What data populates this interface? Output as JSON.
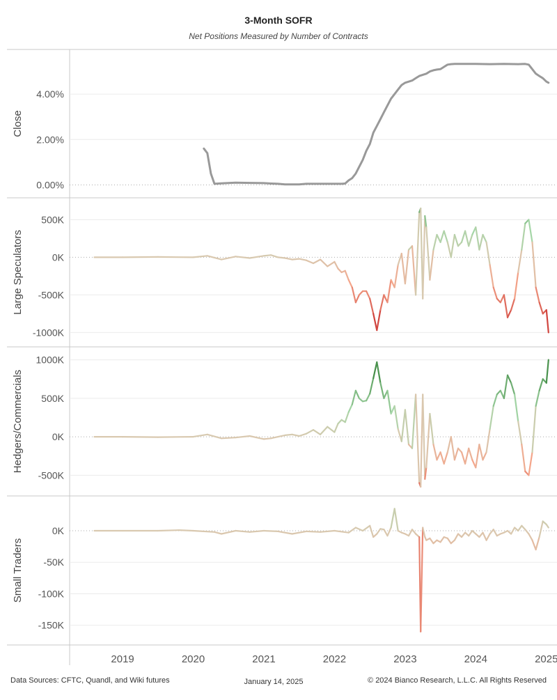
{
  "title": "3-Month SOFR",
  "subtitle": "Net Positions Measured by Number of Contracts",
  "footer": {
    "sources": "Data Sources: CFTC, Quandl, and Wiki futures",
    "date": "January 14, 2025",
    "copyright": "© 2024 Bianco Research, L.L.C. All Rights Reserved"
  },
  "colors": {
    "close_line": "#999999",
    "positive_dark": "#2e7d32",
    "positive_light": "#a5d6a7",
    "neutral": "#d9c9b0",
    "negative_light": "#f4a58a",
    "negative_dark": "#c62828",
    "grid": "#ebebeb",
    "border": "#c8c8c8"
  },
  "chart_data": [
    {
      "type": "line",
      "ylabel": "Close",
      "ylim": [
        -0.2,
        5.6
      ],
      "yticks": [
        0,
        2,
        4
      ],
      "yticklabels": [
        "0.00%",
        "2.00%",
        "4.00%"
      ],
      "color_mode": "solid",
      "x": [
        2020.15,
        2020.2,
        2020.25,
        2020.3,
        2020.4,
        2020.6,
        2020.8,
        2021.0,
        2021.1,
        2021.2,
        2021.3,
        2021.4,
        2021.5,
        2021.6,
        2021.8,
        2022.0,
        2022.1,
        2022.15,
        2022.2,
        2022.25,
        2022.3,
        2022.35,
        2022.4,
        2022.45,
        2022.5,
        2022.55,
        2022.6,
        2022.65,
        2022.7,
        2022.75,
        2022.8,
        2022.85,
        2022.9,
        2022.95,
        2023.0,
        2023.05,
        2023.1,
        2023.15,
        2023.2,
        2023.25,
        2023.3,
        2023.35,
        2023.4,
        2023.45,
        2023.5,
        2023.55,
        2023.6,
        2023.65,
        2023.7,
        2023.8,
        2023.9,
        2024.0,
        2024.2,
        2024.4,
        2024.6,
        2024.7,
        2024.75,
        2024.8,
        2024.85,
        2024.9,
        2024.95,
        2025.0,
        2025.03
      ],
      "y": [
        1.6,
        1.4,
        0.5,
        0.05,
        0.07,
        0.1,
        0.09,
        0.08,
        0.06,
        0.05,
        0.02,
        0.02,
        0.02,
        0.05,
        0.05,
        0.05,
        0.05,
        0.06,
        0.2,
        0.3,
        0.5,
        0.8,
        1.1,
        1.5,
        1.8,
        2.3,
        2.6,
        2.9,
        3.2,
        3.5,
        3.8,
        4.0,
        4.2,
        4.4,
        4.5,
        4.55,
        4.6,
        4.7,
        4.8,
        4.85,
        4.9,
        5.0,
        5.05,
        5.08,
        5.1,
        5.2,
        5.3,
        5.32,
        5.33,
        5.33,
        5.33,
        5.33,
        5.32,
        5.33,
        5.32,
        5.33,
        5.3,
        5.1,
        4.9,
        4.8,
        4.7,
        4.55,
        4.5
      ]
    },
    {
      "type": "line",
      "ylabel": "Large Speculators",
      "ylim": [
        -1080000,
        680000
      ],
      "yticks": [
        -1000000,
        -500000,
        0,
        500000
      ],
      "yticklabels": [
        "-1000K",
        "-500K",
        "0K",
        "500K"
      ],
      "color_mode": "diverging",
      "x": [
        2018.6,
        2019.0,
        2019.5,
        2020.0,
        2020.2,
        2020.4,
        2020.6,
        2020.8,
        2021.0,
        2021.1,
        2021.2,
        2021.3,
        2021.4,
        2021.5,
        2021.6,
        2021.7,
        2021.8,
        2021.9,
        2022.0,
        2022.05,
        2022.1,
        2022.15,
        2022.2,
        2022.25,
        2022.3,
        2022.35,
        2022.4,
        2022.45,
        2022.5,
        2022.55,
        2022.6,
        2022.65,
        2022.7,
        2022.75,
        2022.8,
        2022.85,
        2022.9,
        2022.95,
        2023.0,
        2023.05,
        2023.1,
        2023.15,
        2023.2,
        2023.22,
        2023.25,
        2023.28,
        2023.3,
        2023.35,
        2023.4,
        2023.45,
        2023.5,
        2023.55,
        2023.6,
        2023.65,
        2023.7,
        2023.75,
        2023.8,
        2023.85,
        2023.9,
        2023.95,
        2024.0,
        2024.05,
        2024.1,
        2024.15,
        2024.2,
        2024.25,
        2024.3,
        2024.35,
        2024.4,
        2024.45,
        2024.5,
        2024.55,
        2024.6,
        2024.65,
        2024.7,
        2024.75,
        2024.8,
        2024.85,
        2024.9,
        2024.95,
        2025.0,
        2025.03
      ],
      "y": [
        0,
        0,
        5000,
        0,
        20000,
        -30000,
        10000,
        -10000,
        20000,
        30000,
        0,
        -10000,
        -30000,
        -20000,
        -40000,
        -80000,
        -30000,
        -120000,
        -60000,
        -150000,
        -200000,
        -180000,
        -300000,
        -400000,
        -600000,
        -500000,
        -450000,
        -450000,
        -550000,
        -750000,
        -970000,
        -700000,
        -500000,
        -600000,
        -300000,
        -400000,
        -100000,
        50000,
        -350000,
        100000,
        150000,
        -500000,
        600000,
        650000,
        -550000,
        550000,
        400000,
        -300000,
        100000,
        300000,
        200000,
        350000,
        200000,
        0,
        300000,
        150000,
        200000,
        350000,
        150000,
        300000,
        400000,
        100000,
        300000,
        200000,
        -100000,
        -400000,
        -550000,
        -600000,
        -500000,
        -800000,
        -700000,
        -550000,
        -200000,
        100000,
        450000,
        500000,
        200000,
        -400000,
        -600000,
        -750000,
        -700000,
        -1000000
      ]
    },
    {
      "type": "line",
      "ylabel": "Hedgers/Commercials",
      "ylim": [
        -660000,
        1060000
      ],
      "yticks": [
        -500000,
        0,
        500000,
        1000000
      ],
      "yticklabels": [
        "-500K",
        "0K",
        "500K",
        "1000K"
      ],
      "color_mode": "diverging",
      "x": [
        2018.6,
        2019.0,
        2019.5,
        2020.0,
        2020.2,
        2020.4,
        2020.6,
        2020.8,
        2021.0,
        2021.1,
        2021.2,
        2021.3,
        2021.4,
        2021.5,
        2021.6,
        2021.7,
        2021.8,
        2021.9,
        2022.0,
        2022.05,
        2022.1,
        2022.15,
        2022.2,
        2022.25,
        2022.3,
        2022.35,
        2022.4,
        2022.45,
        2022.5,
        2022.55,
        2022.6,
        2022.65,
        2022.7,
        2022.75,
        2022.8,
        2022.85,
        2022.9,
        2022.95,
        2023.0,
        2023.05,
        2023.1,
        2023.15,
        2023.2,
        2023.22,
        2023.25,
        2023.28,
        2023.3,
        2023.35,
        2023.4,
        2023.45,
        2023.5,
        2023.55,
        2023.6,
        2023.65,
        2023.7,
        2023.75,
        2023.8,
        2023.85,
        2023.9,
        2023.95,
        2024.0,
        2024.05,
        2024.1,
        2024.15,
        2024.2,
        2024.25,
        2024.3,
        2024.35,
        2024.4,
        2024.45,
        2024.5,
        2024.55,
        2024.6,
        2024.65,
        2024.7,
        2024.75,
        2024.8,
        2024.85,
        2024.9,
        2024.95,
        2025.0,
        2025.03
      ],
      "y": [
        0,
        0,
        -5000,
        0,
        30000,
        -20000,
        -10000,
        10000,
        -30000,
        -20000,
        0,
        20000,
        30000,
        10000,
        40000,
        90000,
        30000,
        130000,
        60000,
        170000,
        220000,
        190000,
        320000,
        420000,
        600000,
        500000,
        460000,
        470000,
        560000,
        760000,
        970000,
        700000,
        500000,
        600000,
        300000,
        400000,
        100000,
        -60000,
        350000,
        -100000,
        -150000,
        550000,
        -600000,
        -650000,
        550000,
        -550000,
        -400000,
        300000,
        -100000,
        -300000,
        -200000,
        -350000,
        -200000,
        0,
        -300000,
        -150000,
        -200000,
        -350000,
        -150000,
        -300000,
        -400000,
        -100000,
        -300000,
        -200000,
        100000,
        400000,
        550000,
        600000,
        500000,
        800000,
        700000,
        550000,
        200000,
        -100000,
        -450000,
        -500000,
        -200000,
        400000,
        600000,
        750000,
        700000,
        1000000
      ]
    },
    {
      "type": "line",
      "ylabel": "Small Traders",
      "ylim": [
        -168000,
        42000
      ],
      "yticks": [
        -150000,
        -100000,
        -50000,
        0
      ],
      "yticklabels": [
        "-150K",
        "-100K",
        "-50K",
        "0K"
      ],
      "color_mode": "diverging",
      "x": [
        2018.6,
        2019.0,
        2019.5,
        2019.8,
        2020.0,
        2020.3,
        2020.4,
        2020.6,
        2020.8,
        2021.0,
        2021.2,
        2021.4,
        2021.6,
        2021.8,
        2022.0,
        2022.2,
        2022.3,
        2022.4,
        2022.5,
        2022.55,
        2022.6,
        2022.65,
        2022.7,
        2022.75,
        2022.8,
        2022.85,
        2022.9,
        2022.95,
        2023.0,
        2023.05,
        2023.1,
        2023.15,
        2023.2,
        2023.22,
        2023.25,
        2023.28,
        2023.3,
        2023.35,
        2023.4,
        2023.45,
        2023.5,
        2023.55,
        2023.6,
        2023.65,
        2023.7,
        2023.75,
        2023.8,
        2023.85,
        2023.9,
        2023.95,
        2024.0,
        2024.05,
        2024.1,
        2024.15,
        2024.2,
        2024.25,
        2024.3,
        2024.35,
        2024.4,
        2024.45,
        2024.5,
        2024.55,
        2024.6,
        2024.65,
        2024.7,
        2024.75,
        2024.8,
        2024.85,
        2024.9,
        2024.95,
        2025.0,
        2025.03
      ],
      "y": [
        0,
        0,
        0,
        1000,
        0,
        -2000,
        -5000,
        0,
        -2000,
        0,
        -1000,
        -5000,
        -1000,
        -2000,
        0,
        -3000,
        5000,
        0,
        8000,
        -10000,
        -5000,
        3000,
        2000,
        -8000,
        5000,
        35000,
        0,
        -3000,
        -5000,
        -8000,
        2000,
        -5000,
        -10000,
        -160000,
        5000,
        -10000,
        -15000,
        -12000,
        -20000,
        -15000,
        -18000,
        -10000,
        -12000,
        -20000,
        -15000,
        -5000,
        -10000,
        -3000,
        -8000,
        0,
        -5000,
        -10000,
        -3000,
        -15000,
        -5000,
        2000,
        -8000,
        -5000,
        -3000,
        0,
        -5000,
        5000,
        0,
        8000,
        2000,
        -5000,
        -15000,
        -30000,
        -10000,
        15000,
        10000,
        5000
      ]
    }
  ],
  "x_axis": {
    "xlim": [
      2018.25,
      2025.15
    ],
    "ticks": [
      2019,
      2020,
      2021,
      2022,
      2023,
      2024,
      2025
    ],
    "ticklabels": [
      "2019",
      "2020",
      "2021",
      "2022",
      "2023",
      "2024",
      "2025"
    ]
  }
}
